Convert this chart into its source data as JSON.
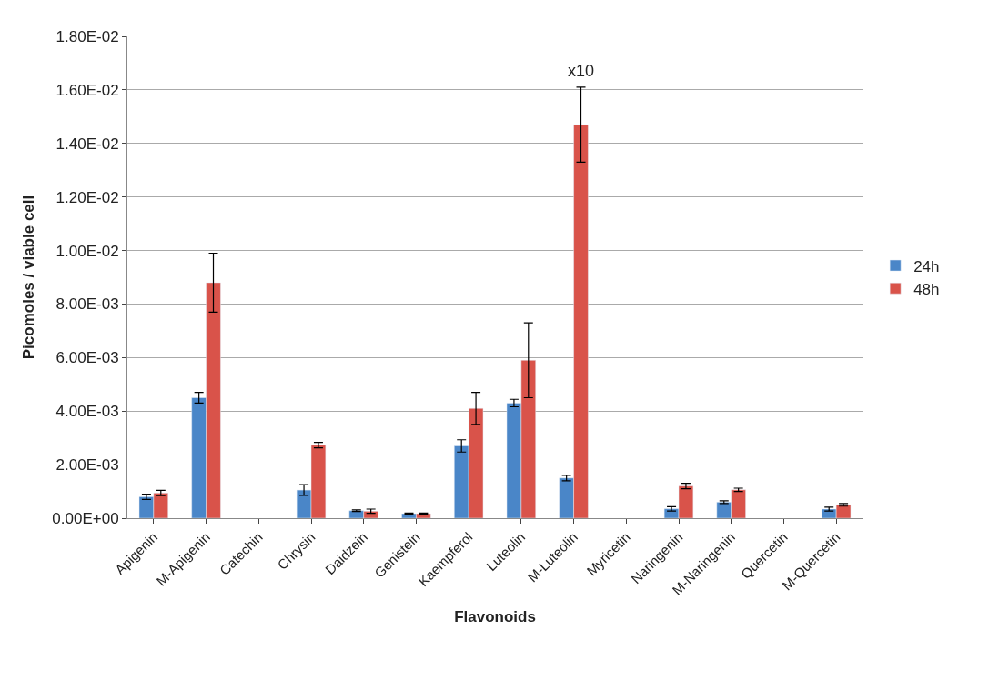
{
  "chart_data": {
    "type": "bar",
    "xlabel": "Flavonoids",
    "ylabel": "Picomoles / viable cell",
    "categories": [
      "Apigenin",
      "M-Apigenin",
      "Catechin",
      "Chrysin",
      "Daidzein",
      "Genistein",
      "Kaempferol",
      "Luteolin",
      "M-Luteolin",
      "Myricetin",
      "Naringenin",
      "M-Naringenin",
      "Quercetin",
      "M-Quercetin"
    ],
    "series": [
      {
        "name": "24h",
        "color": "#4a86c8",
        "values": [
          0.0008,
          0.0045,
          null,
          0.00105,
          0.00028,
          0.00017,
          0.0027,
          0.0043,
          0.0015,
          null,
          0.00035,
          0.0006,
          null,
          0.00034
        ],
        "errors": [
          0.0001,
          0.0002,
          null,
          0.0002,
          3e-05,
          2e-05,
          0.00023,
          0.00014,
          0.0001,
          null,
          8e-05,
          5e-05,
          null,
          7e-05
        ]
      },
      {
        "name": "48h",
        "color": "#d9534a",
        "values": [
          0.00094,
          0.0088,
          null,
          0.00273,
          0.00026,
          0.00017,
          0.0041,
          0.0059,
          0.0147,
          null,
          0.0012,
          0.00106,
          null,
          0.0005
        ],
        "errors": [
          0.0001,
          0.0011,
          null,
          0.0001,
          8e-05,
          2e-05,
          0.0006,
          0.0014,
          0.0014,
          null,
          0.0001,
          6e-05,
          null,
          5e-05
        ]
      }
    ],
    "ylim": [
      0,
      0.018
    ],
    "yticks": [
      {
        "value": 0,
        "label": "0.00E+00"
      },
      {
        "value": 0.002,
        "label": "2.00E-03"
      },
      {
        "value": 0.004,
        "label": "4.00E-03"
      },
      {
        "value": 0.006,
        "label": "6.00E-03"
      },
      {
        "value": 0.008,
        "label": "8.00E-03"
      },
      {
        "value": 0.01,
        "label": "1.00E-02"
      },
      {
        "value": 0.012,
        "label": "1.20E-02"
      },
      {
        "value": 0.014,
        "label": "1.40E-02"
      },
      {
        "value": 0.016,
        "label": "1.60E-02"
      },
      {
        "value": 0.018,
        "label": "1.80E-02"
      }
    ],
    "annotations": [
      "x10"
    ],
    "grid": "y",
    "legend": "right"
  }
}
